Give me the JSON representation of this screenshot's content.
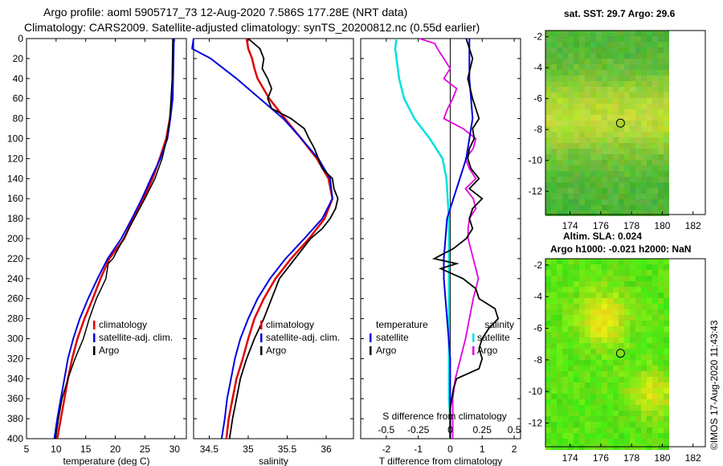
{
  "title_line1": "Argo profile: aoml 5905717_73 12-Aug-2020 7.586S 177.28E (NRT data)",
  "title_line2": "Climatology: CARS2009. Satellite-adjusted climatology: synTS_20200812.nc (0.55d earlier)",
  "map_sst_title": "sat. SST: 29.7 Argo: 29.6",
  "map_sla_title1": "Altim. SLA: 0.024",
  "map_sla_title2": "Argo h1000: -0.021 h2000: NaN",
  "credit": "©IMOS 17-Aug-2020 11:43:43",
  "colors": {
    "climatology": "#e00000",
    "satellite": "#0000e0",
    "argo": "#000000",
    "cyan": "#00e0e0",
    "magenta": "#e000e0"
  },
  "chart_data": [
    {
      "type": "line",
      "name": "temperature",
      "xlabel": "temperature (deg C)",
      "xlim": [
        5,
        32
      ],
      "ylim": [
        0,
        400
      ],
      "xticks": [
        "5",
        "10",
        "15",
        "20",
        "25",
        "30"
      ],
      "yticks": [
        "0",
        "20",
        "40",
        "60",
        "80",
        "100",
        "120",
        "140",
        "160",
        "180",
        "200",
        "220",
        "240",
        "260",
        "280",
        "300",
        "320",
        "340",
        "360",
        "380",
        "400"
      ],
      "legend": [
        "climatology",
        "satellite-adj. clim.",
        "Argo"
      ],
      "series": [
        {
          "name": "climatology",
          "depth": [
            0,
            60,
            80,
            100,
            120,
            140,
            160,
            180,
            200,
            220,
            240,
            260,
            280,
            300,
            320,
            340,
            360,
            380,
            400
          ],
          "values": [
            29.8,
            29.6,
            29.2,
            28.6,
            27.5,
            26.3,
            24.8,
            23.0,
            21.5,
            19.0,
            17.5,
            16.2,
            14.8,
            13.6,
            12.7,
            12.0,
            11.4,
            10.8,
            10.2
          ]
        },
        {
          "name": "satellite-adj. clim.",
          "depth": [
            0,
            60,
            80,
            100,
            120,
            140,
            160,
            180,
            200,
            220,
            240,
            260,
            280,
            300,
            320,
            340,
            360,
            380,
            400
          ],
          "values": [
            29.9,
            29.7,
            29.3,
            28.8,
            27.6,
            26.0,
            24.5,
            22.8,
            21.0,
            18.7,
            17.0,
            15.4,
            14.0,
            12.9,
            12.0,
            11.4,
            10.8,
            10.2,
            9.7
          ]
        },
        {
          "name": "Argo",
          "depth": [
            0,
            40,
            80,
            100,
            120,
            140,
            160,
            180,
            200,
            220,
            225,
            240,
            250,
            260,
            280,
            300,
            320,
            340,
            360,
            380,
            400
          ],
          "values": [
            29.7,
            29.6,
            29.2,
            28.7,
            27.9,
            26.7,
            25.0,
            23.2,
            21.4,
            19.6,
            18.8,
            18.4,
            17.6,
            16.8,
            15.6,
            14.6,
            13.2,
            12.0,
            11.0,
            10.4,
            9.9
          ]
        }
      ]
    },
    {
      "type": "line",
      "name": "salinity",
      "xlabel": "salinity",
      "xlim": [
        34.3,
        36.35
      ],
      "ylim": [
        0,
        400
      ],
      "xticks": [
        "34.5",
        "35",
        "35.5",
        "36"
      ],
      "legend": [
        "climatology",
        "satellite-adj. clim.",
        "Argo"
      ],
      "series": [
        {
          "name": "climatology",
          "depth": [
            0,
            10,
            20,
            30,
            40,
            60,
            80,
            100,
            120,
            140,
            160,
            180,
            200,
            220,
            240,
            260,
            280,
            300,
            320,
            340,
            360,
            380,
            400
          ],
          "values": [
            34.98,
            35.0,
            35.05,
            35.08,
            35.12,
            35.27,
            35.47,
            35.68,
            35.88,
            36.03,
            36.08,
            35.98,
            35.78,
            35.55,
            35.35,
            35.2,
            35.08,
            35.0,
            34.93,
            34.85,
            34.8,
            34.75,
            34.72
          ]
        },
        {
          "name": "satellite-adj. clim.",
          "depth": [
            0,
            10,
            20,
            40,
            60,
            80,
            100,
            120,
            140,
            160,
            180,
            200,
            220,
            240,
            260,
            280,
            300,
            320,
            340,
            360,
            380,
            400
          ],
          "values": [
            34.3,
            34.28,
            34.52,
            34.85,
            35.15,
            35.45,
            35.68,
            35.9,
            36.05,
            36.08,
            35.95,
            35.72,
            35.48,
            35.28,
            35.12,
            35.0,
            34.9,
            34.83,
            34.78,
            34.73,
            34.7,
            34.66
          ]
        },
        {
          "name": "Argo",
          "depth": [
            0,
            10,
            20,
            30,
            40,
            50,
            60,
            70,
            80,
            90,
            100,
            110,
            120,
            130,
            140,
            150,
            160,
            170,
            180,
            190,
            200,
            210,
            220,
            240,
            260,
            280,
            300,
            320,
            340,
            360,
            380,
            400
          ],
          "values": [
            35.0,
            35.15,
            35.2,
            35.18,
            35.25,
            35.3,
            35.25,
            35.3,
            35.55,
            35.72,
            35.78,
            35.85,
            35.9,
            35.95,
            36.08,
            36.1,
            36.15,
            36.12,
            36.05,
            35.95,
            35.8,
            35.7,
            35.6,
            35.4,
            35.3,
            35.2,
            35.08,
            34.98,
            34.9,
            34.85,
            34.8,
            34.76
          ]
        }
      ]
    },
    {
      "type": "line",
      "name": "differences",
      "xlabel": "T difference from climatology",
      "xlabel_top": "S difference from climatology",
      "xlim": [
        -2.8,
        2.2
      ],
      "ylim": [
        0,
        400
      ],
      "xticks": [
        "-2",
        "-1",
        "0",
        "1",
        "2"
      ],
      "xticks_top": [
        "-0.5",
        "-0.25",
        "0",
        "0.25",
        "0.5"
      ],
      "legend_left_title": "temperature",
      "legend_right_title": "salinity",
      "legend_left": [
        "satellite",
        "Argo"
      ],
      "legend_right": [
        "satellite",
        "Argo"
      ],
      "series": [
        {
          "name": "T satellite",
          "depth": [
            0,
            40,
            80,
            100,
            120,
            140,
            160,
            180,
            200,
            220,
            240,
            260,
            280,
            300,
            320,
            340,
            360,
            380,
            400
          ],
          "values": [
            0.6,
            0.6,
            0.7,
            0.6,
            0.5,
            0.3,
            0.1,
            -0.1,
            -0.15,
            -0.2,
            -0.2,
            -0.15,
            -0.1,
            -0.05,
            0,
            0,
            0,
            0,
            0
          ]
        },
        {
          "name": "T Argo",
          "depth": [
            0,
            10,
            20,
            40,
            60,
            80,
            90,
            100,
            110,
            120,
            130,
            140,
            150,
            160,
            170,
            180,
            190,
            200,
            210,
            220,
            225,
            230,
            240,
            250,
            260,
            270,
            280,
            290,
            300,
            310,
            320,
            330,
            340,
            350,
            360,
            370,
            380,
            390,
            400
          ],
          "values": [
            0.5,
            0.6,
            0.7,
            0.55,
            0.7,
            0.9,
            0.7,
            0.75,
            0.6,
            0.55,
            0.65,
            0.9,
            0.6,
            1.0,
            0.7,
            0.6,
            0.7,
            0.5,
            0.1,
            -0.5,
            0.2,
            -0.3,
            0.4,
            0.8,
            0.9,
            1.4,
            1.5,
            1.2,
            1.0,
            0.9,
            1.0,
            0.9,
            0.2,
            0.1,
            0.05,
            0.0,
            0.0,
            0.0,
            0.0
          ]
        },
        {
          "name": "S satellite",
          "depth": [
            0,
            10,
            20,
            40,
            60,
            80,
            100,
            120,
            140,
            160,
            180,
            200,
            220,
            240,
            260,
            280,
            300,
            320,
            340,
            360,
            380,
            400
          ],
          "values": [
            -0.42,
            -0.43,
            -0.42,
            -0.4,
            -0.36,
            -0.28,
            -0.16,
            -0.06,
            -0.03,
            -0.02,
            -0.01,
            -0.01,
            -0.01,
            -0.01,
            -0.01,
            -0.01,
            -0.01,
            -0.01,
            -0.01,
            -0.01,
            0,
            0
          ]
        },
        {
          "name": "S Argo",
          "depth": [
            0,
            5,
            10,
            20,
            30,
            40,
            50,
            60,
            70,
            80,
            90,
            100,
            110,
            120,
            130,
            140,
            150,
            160,
            170,
            180,
            190,
            200,
            220,
            240,
            260,
            280,
            300,
            320,
            340,
            360,
            380,
            400
          ],
          "values": [
            -0.24,
            -0.12,
            -0.1,
            -0.05,
            0,
            -0.05,
            0.05,
            0.02,
            -0.02,
            -0.05,
            0.1,
            0.2,
            0.18,
            0.12,
            0.15,
            0.2,
            0.12,
            0.18,
            0.2,
            0.15,
            0.14,
            0.14,
            0.18,
            0.22,
            0.18,
            0.15,
            0.12,
            0.08,
            0.04,
            0.02,
            0.02,
            0.02
          ]
        }
      ]
    }
  ],
  "maps": [
    {
      "name": "sst-map",
      "lat_ticks": [
        "-2",
        "-4",
        "-6",
        "-8",
        "-10",
        "-12"
      ],
      "lon_ticks": [
        "174",
        "176",
        "178",
        "180",
        "182"
      ]
    },
    {
      "name": "sla-map",
      "lat_ticks": [
        "-2",
        "-4",
        "-6",
        "-8",
        "-10",
        "-12"
      ],
      "lon_ticks": [
        "174",
        "176",
        "178",
        "180",
        "182"
      ]
    }
  ]
}
